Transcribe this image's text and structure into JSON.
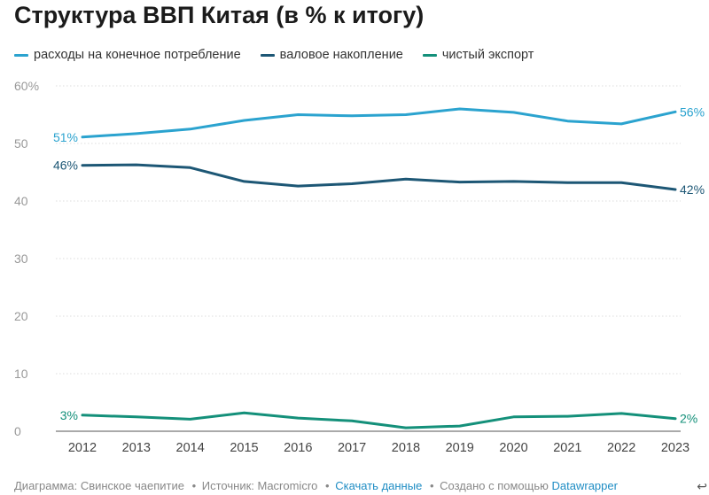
{
  "title": "Структура ВВП Китая (в % к итогу)",
  "chart_data": {
    "type": "line",
    "title": "Структура ВВП Китая (в % к итогу)",
    "xlabel": "",
    "ylabel": "",
    "x": [
      2012,
      2013,
      2014,
      2015,
      2016,
      2017,
      2018,
      2019,
      2020,
      2021,
      2022,
      2023
    ],
    "ylim": [
      0,
      60
    ],
    "y_ticks": [
      "0",
      "10",
      "20",
      "30",
      "40",
      "50",
      "60%"
    ],
    "grid": true,
    "legend_position": "top-left",
    "series": [
      {
        "name": "расходы на конечное потребление",
        "color": "#2ba3cf",
        "values": [
          51.1,
          51.7,
          52.5,
          54.0,
          55.0,
          54.8,
          55.0,
          56.0,
          55.4,
          53.9,
          53.4,
          55.5
        ],
        "start_label": "51%",
        "end_label": "56%"
      },
      {
        "name": "валовое накопление",
        "color": "#1d5775",
        "values": [
          46.2,
          46.3,
          45.8,
          43.4,
          42.6,
          43.0,
          43.8,
          43.3,
          43.4,
          43.2,
          43.2,
          42.0
        ],
        "start_label": "46%",
        "end_label": "42%"
      },
      {
        "name": "чистый экспорт",
        "color": "#14907a",
        "values": [
          2.8,
          2.5,
          2.1,
          3.2,
          2.3,
          1.8,
          0.6,
          0.9,
          2.5,
          2.6,
          3.1,
          2.2
        ],
        "start_label": "3%",
        "end_label": "2%"
      }
    ]
  },
  "footer": {
    "text1": "Диаграмма: Свинское чаепитие",
    "sep": "•",
    "text2": "Источник: Macromicro",
    "link1": "Скачать данные",
    "text3": "Создано с помощью",
    "link2": "Datawrapper"
  },
  "corner_icon": "return-arrow-icon",
  "corner_glyph": "↩"
}
